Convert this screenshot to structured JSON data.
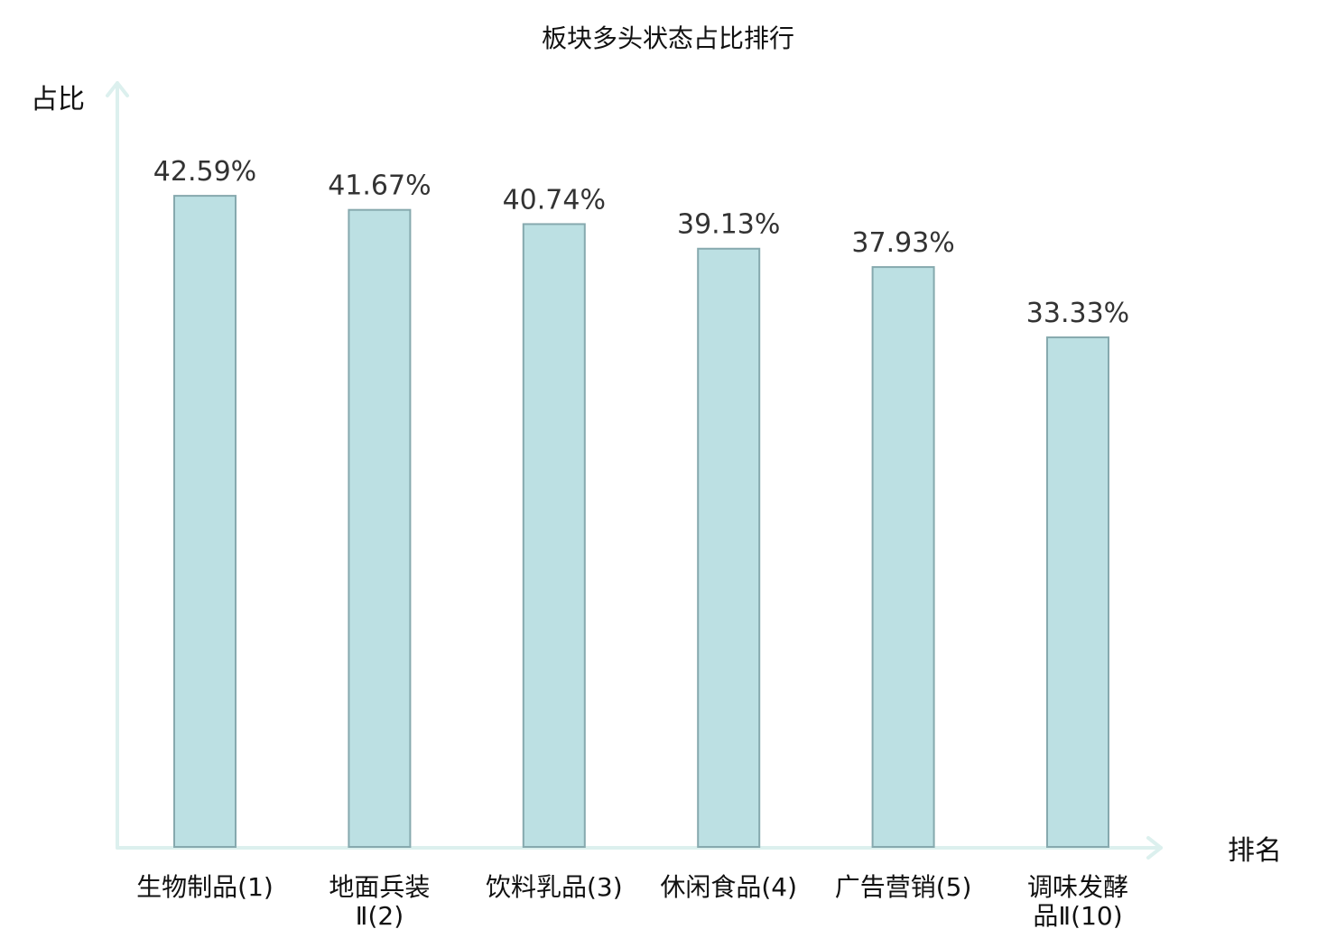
{
  "chart_data": {
    "type": "bar",
    "title": "板块多头状态占比排行",
    "xlabel": "排名",
    "ylabel": "占比",
    "categories": [
      [
        "生物制品(1)"
      ],
      [
        "地面兵装",
        "Ⅱ(2)"
      ],
      [
        "饮料乳品(3)"
      ],
      [
        "休闲食品(4)"
      ],
      [
        "广告营销(5)"
      ],
      [
        "调味发酵",
        "品Ⅱ(10)"
      ]
    ],
    "values": [
      42.59,
      41.67,
      40.74,
      39.13,
      37.93,
      33.33
    ],
    "value_labels": [
      "42.59%",
      "41.67%",
      "40.74%",
      "39.13%",
      "37.93%",
      "33.33%"
    ],
    "highlight_index": 5,
    "ylim": [
      0,
      50
    ],
    "grid": false,
    "legend": "none"
  },
  "colors": {
    "bar_fill": "#bce0e3",
    "bar_stroke": "#86a9ae",
    "axis": "#dcf0ee",
    "text": "#111111",
    "value_text": "#333333",
    "highlight": "#d40000"
  }
}
